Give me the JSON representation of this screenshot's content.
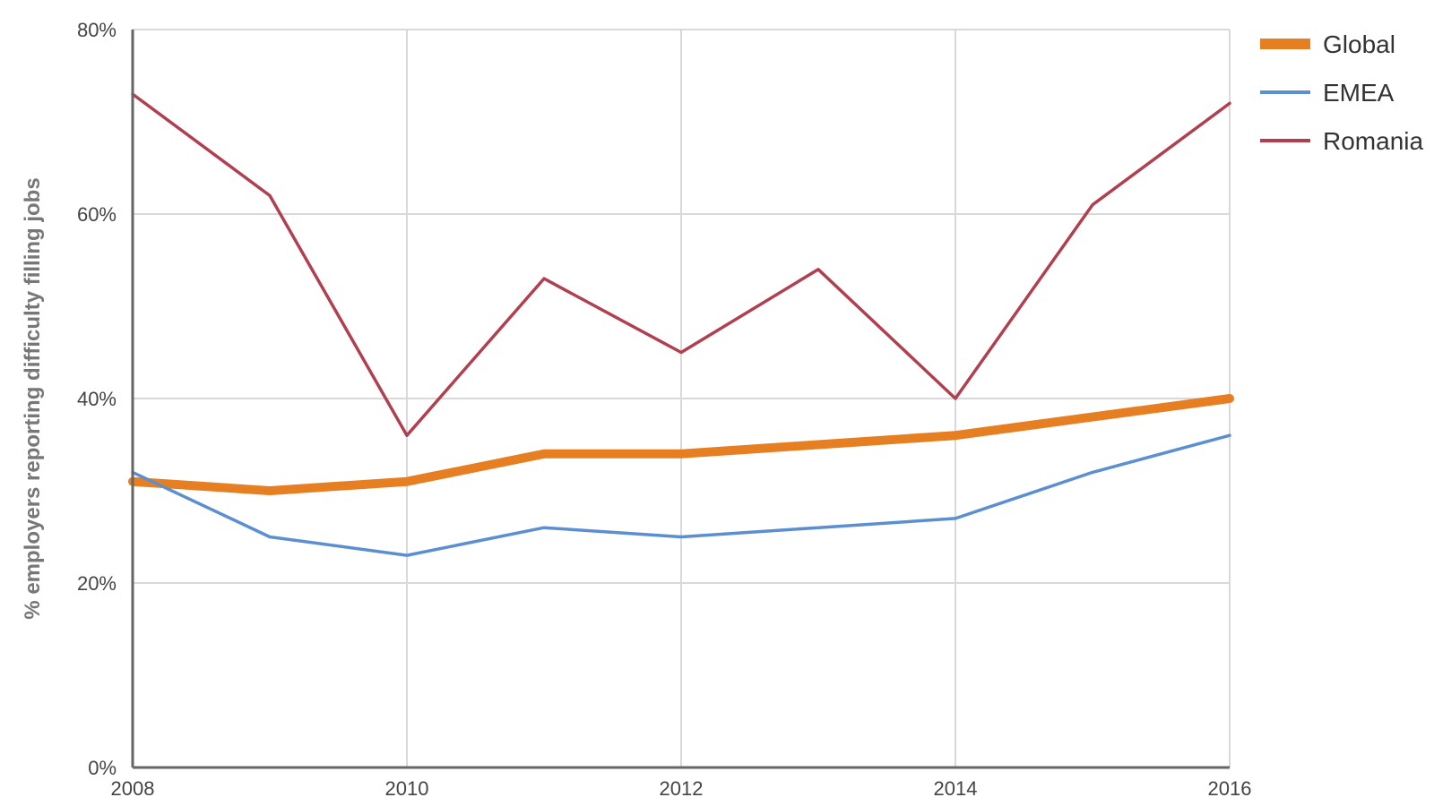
{
  "chart_data": {
    "type": "line",
    "title": "",
    "xlabel": "",
    "ylabel": "% employers reporting difficulty filling jobs",
    "x": [
      2008,
      2009,
      2010,
      2011,
      2012,
      2013,
      2014,
      2015,
      2016
    ],
    "xlim": [
      2008,
      2016
    ],
    "ylim": [
      0,
      80
    ],
    "x_ticks": [
      "2008",
      "2010",
      "2012",
      "2014",
      "2016"
    ],
    "y_ticks": [
      "0%",
      "20%",
      "40%",
      "60%",
      "80%"
    ],
    "grid": true,
    "legend_position": "top-right",
    "series": [
      {
        "name": "Global",
        "color": "#e67e22",
        "values": [
          31,
          30,
          31,
          34,
          34,
          35,
          36,
          38,
          40
        ]
      },
      {
        "name": "EMEA",
        "color": "#5b8fcf",
        "values": [
          32,
          25,
          23,
          26,
          25,
          26,
          27,
          32,
          36
        ]
      },
      {
        "name": "Romania",
        "color": "#b04050",
        "values": [
          73,
          62,
          36,
          53,
          45,
          54,
          40,
          61,
          72
        ]
      }
    ]
  }
}
